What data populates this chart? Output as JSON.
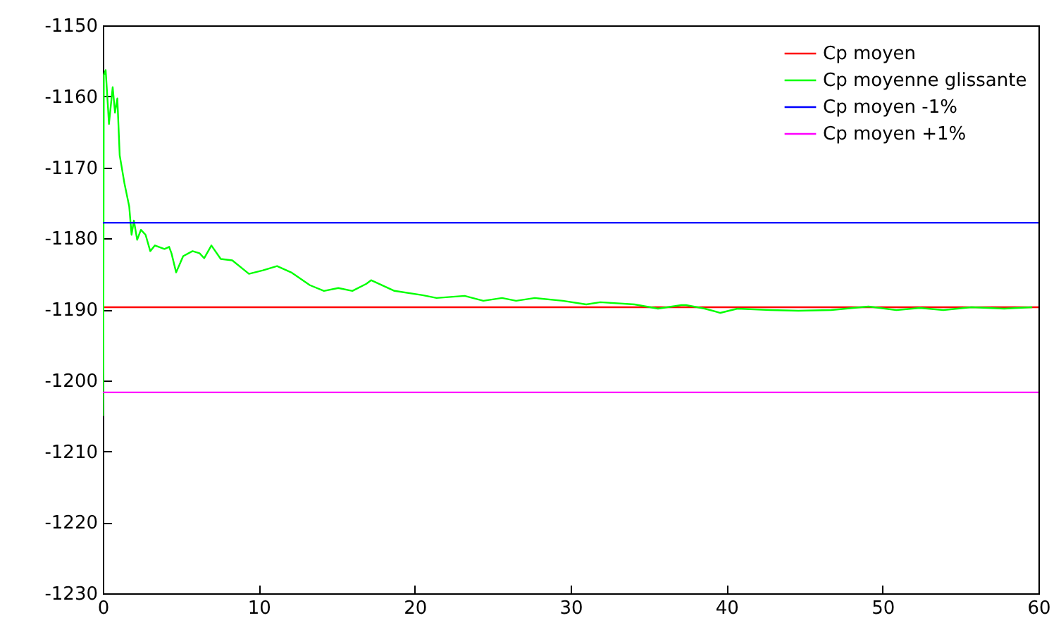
{
  "chart_data": {
    "type": "line",
    "xlim": [
      0,
      60
    ],
    "xticks": [
      0,
      10,
      20,
      30,
      40,
      50,
      60
    ],
    "ylim": [
      -1230,
      -1150
    ],
    "yticks": [
      -1230,
      -1220,
      -1210,
      -1200,
      -1190,
      -1180,
      -1170,
      -1160,
      -1150
    ],
    "grid": false,
    "legend": "top right",
    "line_style": "solid",
    "marker": "none",
    "series": [
      {
        "name": "Cp moyen",
        "color": "#ff0000",
        "x": [
          0,
          60
        ],
        "values": [
          -1189.7,
          -1189.7
        ]
      },
      {
        "name": "Cp moyenne glissante",
        "color": "#00ff00",
        "x": [
          0,
          0.03,
          0.06,
          0.18,
          0.33,
          0.39,
          0.63,
          0.78,
          0.93,
          1.08,
          1.38,
          1.69,
          1.84,
          1.99,
          2.2,
          2.44,
          2.74,
          3.04,
          3.34,
          3.95,
          4.25,
          4.4,
          4.7,
          5.15,
          5.75,
          6.2,
          6.5,
          6.96,
          7.56,
          8.3,
          9.37,
          10.27,
          11.17,
          12.08,
          13.28,
          14.18,
          15.1,
          16,
          16.9,
          17.2,
          18.7,
          20.5,
          21.4,
          23.2,
          24.4,
          25.6,
          26.5,
          27.7,
          29.5,
          31,
          31.9,
          34.1,
          35.6,
          37.1,
          37.4,
          38.6,
          39.6,
          40.7,
          42.8,
          44.6,
          46.7,
          49.1,
          50.9,
          52.4,
          53.9,
          55.7,
          57.8,
          59.6
        ],
        "values": [
          -1205,
          -1198,
          -1157,
          -1156.3,
          -1161.6,
          -1163.9,
          -1158.7,
          -1162.3,
          -1160.3,
          -1168.3,
          -1172.2,
          -1175.5,
          -1179.5,
          -1177.5,
          -1180.2,
          -1178.8,
          -1179.5,
          -1181.8,
          -1181,
          -1181.5,
          -1181.2,
          -1182.1,
          -1184.8,
          -1182.5,
          -1181.8,
          -1182.1,
          -1182.8,
          -1181,
          -1182.9,
          -1183.1,
          -1185,
          -1184.5,
          -1183.9,
          -1184.8,
          -1186.6,
          -1187.4,
          -1187,
          -1187.4,
          -1186.4,
          -1185.9,
          -1187.4,
          -1188,
          -1188.4,
          -1188.1,
          -1188.8,
          -1188.4,
          -1188.8,
          -1188.4,
          -1188.8,
          -1189.3,
          -1189,
          -1189.3,
          -1189.9,
          -1189.4,
          -1189.4,
          -1189.9,
          -1190.5,
          -1189.9,
          -1190.1,
          -1190.2,
          -1190.1,
          -1189.6,
          -1190.1,
          -1189.8,
          -1190.1,
          -1189.7,
          -1189.9,
          -1189.7
        ]
      },
      {
        "name": "Cp moyen -1%",
        "color": "#0000ff",
        "x": [
          0,
          60
        ],
        "values": [
          -1177.8,
          -1177.8
        ]
      },
      {
        "name": "Cp moyen +1%",
        "color": "#ff00ff",
        "x": [
          0,
          60
        ],
        "values": [
          -1201.7,
          -1201.7
        ]
      }
    ]
  }
}
